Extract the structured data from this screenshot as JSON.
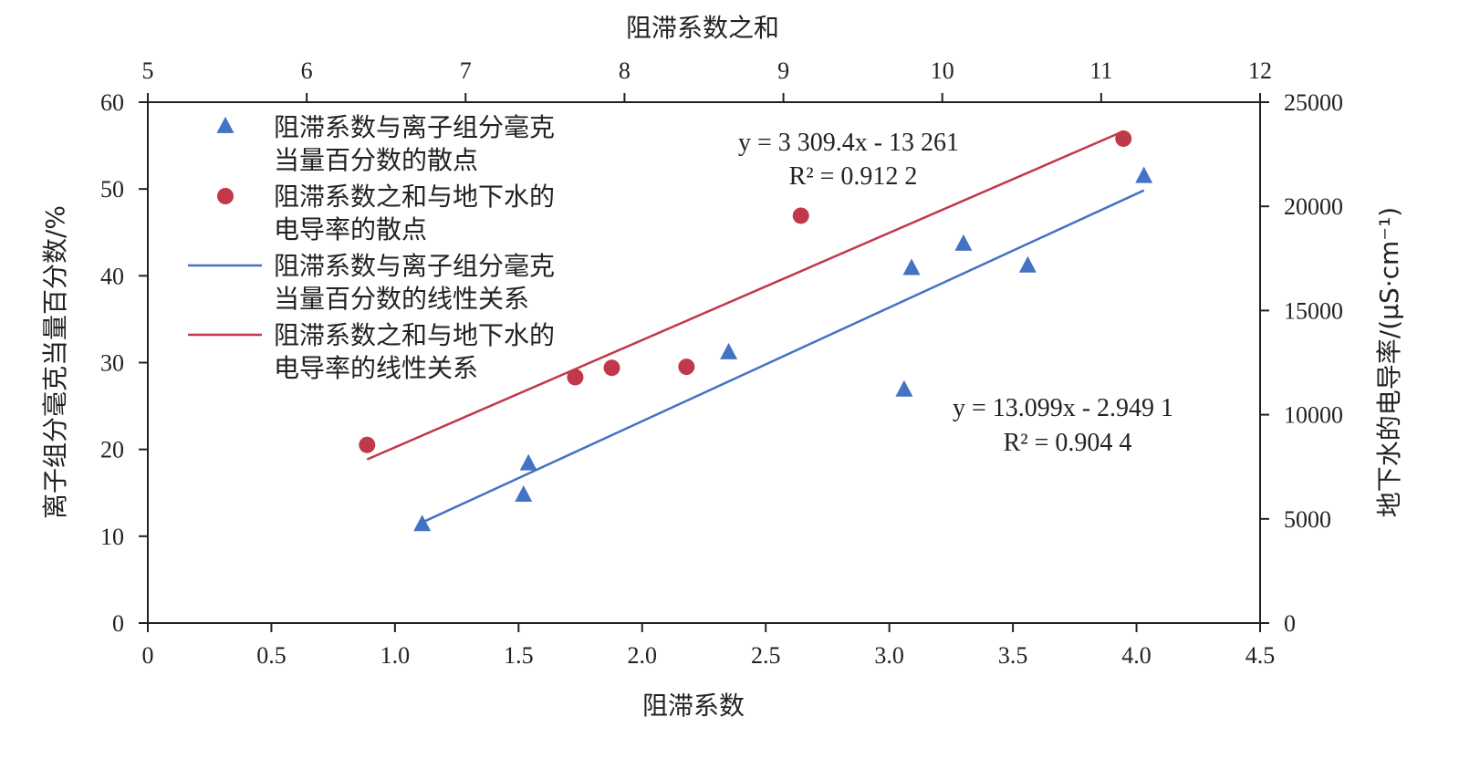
{
  "chart_data": {
    "type": "scatter",
    "xlabel": "阻滞系数",
    "x2label": "阻滞系数之和",
    "ylabel": "离子组分毫克当量百分数/%",
    "y2label": "地下水的电导率/(μS·cm⁻¹)",
    "xlim": [
      0,
      4.5
    ],
    "x2lim": [
      5,
      12
    ],
    "ylim": [
      0,
      60
    ],
    "y2lim": [
      0,
      25000
    ],
    "xticks": [
      "0",
      "0.5",
      "1.0",
      "1.5",
      "2.0",
      "2.5",
      "3.0",
      "3.5",
      "4.0",
      "4.5"
    ],
    "x2ticks": [
      "5",
      "6",
      "7",
      "8",
      "9",
      "10",
      "11",
      "12"
    ],
    "yticks": [
      "0",
      "10",
      "20",
      "30",
      "40",
      "50",
      "60"
    ],
    "y2ticks": [
      "0",
      "5000",
      "10000",
      "15000",
      "20000",
      "25000"
    ],
    "grid": false,
    "legend_position": "top-left",
    "series": [
      {
        "name": "阻滞系数与离子组分毫克当量百分数的散点",
        "name_lines": [
          "阻滞系数与离子组分毫克",
          "当量百分数的散点"
        ],
        "axes": "x-y",
        "marker": "triangle",
        "color": "#4472C4",
        "points": [
          [
            1.11,
            11.3
          ],
          [
            1.52,
            14.7
          ],
          [
            1.54,
            18.3
          ],
          [
            2.35,
            31.1
          ],
          [
            3.06,
            26.8
          ],
          [
            3.09,
            40.8
          ],
          [
            3.3,
            43.6
          ],
          [
            3.56,
            41.1
          ],
          [
            4.03,
            51.4
          ]
        ]
      },
      {
        "name": "阻滞系数之和与地下水的电导率的散点",
        "name_lines": [
          "阻滞系数之和与地下水的",
          "电导率的散点"
        ],
        "axes": "x2-y2",
        "marker": "circle",
        "color": "#C0394B",
        "points": [
          [
            6.38,
            8550
          ],
          [
            7.69,
            11800
          ],
          [
            7.92,
            12250
          ],
          [
            8.39,
            12300
          ],
          [
            9.11,
            19550
          ],
          [
            11.14,
            23250
          ]
        ]
      },
      {
        "name": "阻滞系数与离子组分毫克当量百分数的线性关系",
        "name_lines": [
          "阻滞系数与离子组分毫克",
          "当量百分数的线性关系"
        ],
        "axes": "x-y",
        "type": "line",
        "color": "#4472C4",
        "slope": 13.099,
        "intercept": -2.9491,
        "x_range": [
          1.1,
          4.03
        ]
      },
      {
        "name": "阻滞系数之和与地下水的电导率的线性关系",
        "name_lines": [
          "阻滞系数之和与地下水的",
          "电导率的线性关系"
        ],
        "axes": "x2-y2",
        "type": "line",
        "color": "#C0394B",
        "slope": 3309.4,
        "intercept": -13261,
        "x_range": [
          6.38,
          11.14
        ]
      }
    ],
    "annotations": [
      {
        "line1": "y = 3 309.4x - 13 261",
        "line2": "R² = 0.912 2"
      },
      {
        "line1": "y = 13.099x - 2.949 1",
        "line2": "R² = 0.904 4"
      }
    ]
  }
}
